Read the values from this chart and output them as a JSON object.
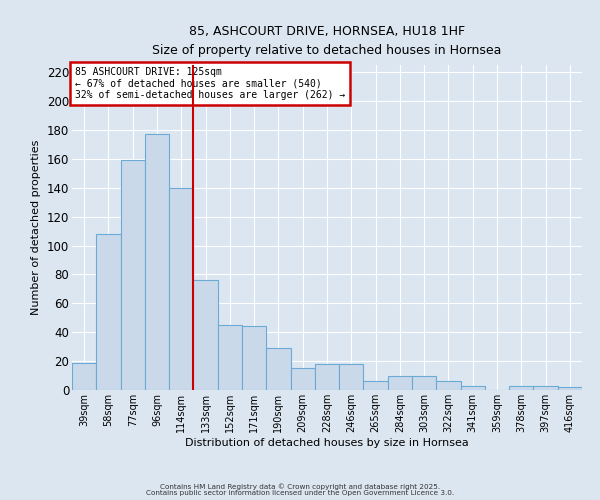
{
  "title": "85, ASHCOURT DRIVE, HORNSEA, HU18 1HF",
  "subtitle": "Size of property relative to detached houses in Hornsea",
  "xlabel": "Distribution of detached houses by size in Hornsea",
  "ylabel": "Number of detached properties",
  "categories": [
    "39sqm",
    "58sqm",
    "77sqm",
    "96sqm",
    "114sqm",
    "133sqm",
    "152sqm",
    "171sqm",
    "190sqm",
    "209sqm",
    "228sqm",
    "246sqm",
    "265sqm",
    "284sqm",
    "303sqm",
    "322sqm",
    "341sqm",
    "359sqm",
    "378sqm",
    "397sqm",
    "416sqm"
  ],
  "values": [
    19,
    108,
    159,
    177,
    140,
    76,
    45,
    44,
    29,
    15,
    18,
    18,
    6,
    10,
    10,
    6,
    3,
    0,
    3,
    3,
    2
  ],
  "bar_color": "#cad9ea",
  "bar_edge_color": "#6aaad4",
  "vline_x": 4.5,
  "vline_color": "#cc0000",
  "annotation_title": "85 ASHCOURT DRIVE: 125sqm",
  "annotation_line1": "← 67% of detached houses are smaller (540)",
  "annotation_line2": "32% of semi-detached houses are larger (262) →",
  "annotation_box_color": "#cc0000",
  "ylim": [
    0,
    225
  ],
  "yticks": [
    0,
    20,
    40,
    60,
    80,
    100,
    120,
    140,
    160,
    180,
    200,
    220
  ],
  "background_color": "#dce6f1",
  "grid_color": "#ffffff",
  "footer1": "Contains HM Land Registry data © Crown copyright and database right 2025.",
  "footer2": "Contains public sector information licensed under the Open Government Licence 3.0."
}
